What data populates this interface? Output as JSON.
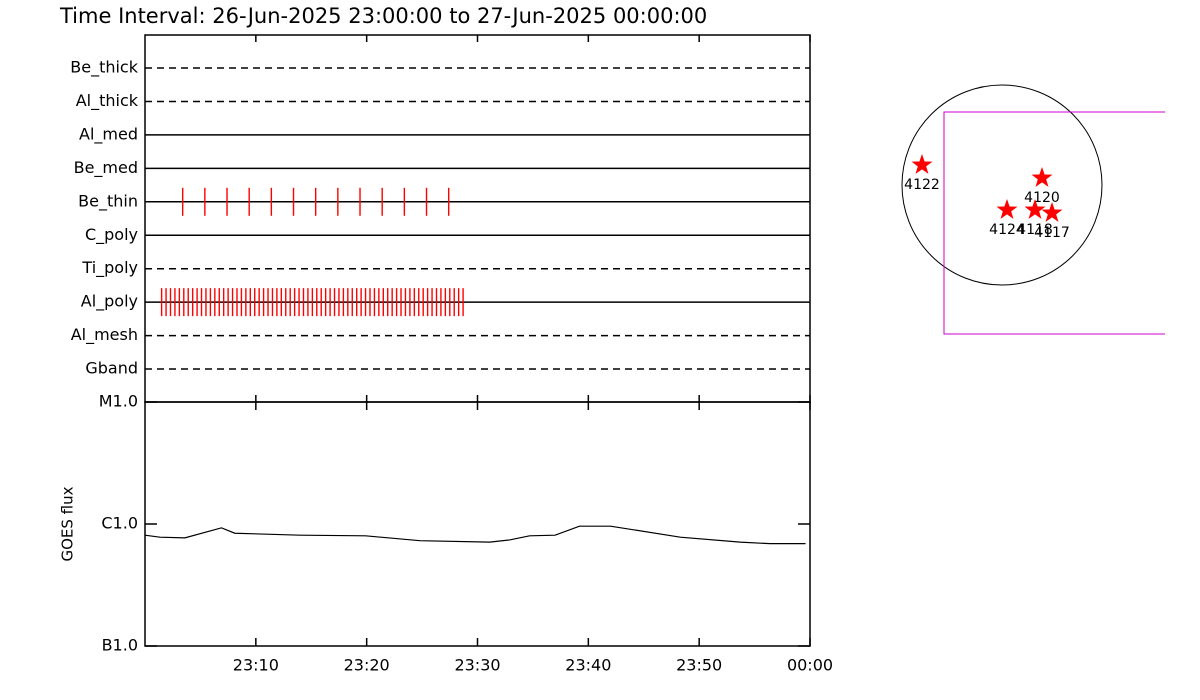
{
  "chart_data": [
    {
      "type": "event",
      "title": "Time Interval: 26-Jun-2025 23:00:00 to 27-Jun-2025 00:00:00",
      "color": "#ff0000",
      "rows": [
        {
          "name": "Be_thick",
          "style": "dashed",
          "times": []
        },
        {
          "name": "Al_thick",
          "style": "dashed",
          "times": []
        },
        {
          "name": "Al_med",
          "style": "solid",
          "times": []
        },
        {
          "name": "Be_med",
          "style": "solid",
          "times": []
        },
        {
          "name": "Be_thin",
          "style": "solid",
          "times": [
            3.4,
            5.4,
            7.4,
            9.4,
            11.4,
            13.4,
            15.4,
            17.4,
            19.4,
            21.4,
            23.4,
            25.4,
            27.4
          ]
        },
        {
          "name": "C_poly",
          "style": "solid",
          "times": []
        },
        {
          "name": "Ti_poly",
          "style": "dashed",
          "times": []
        },
        {
          "name": "Al_poly",
          "style": "solid",
          "times": [
            1.5,
            1.9,
            2.3,
            2.7,
            3.1,
            3.5,
            3.9,
            4.3,
            4.7,
            5.1,
            5.5,
            5.9,
            6.3,
            6.7,
            7.1,
            7.5,
            7.9,
            8.3,
            8.7,
            9.1,
            9.5,
            9.9,
            10.3,
            10.7,
            11.1,
            11.5,
            11.9,
            12.3,
            12.7,
            13.1,
            13.5,
            13.9,
            14.3,
            14.7,
            15.1,
            15.5,
            15.9,
            16.3,
            16.7,
            17.1,
            17.5,
            17.9,
            18.3,
            18.7,
            19.1,
            19.5,
            19.9,
            20.3,
            20.7,
            21.1,
            21.5,
            21.9,
            22.3,
            22.7,
            23.1,
            23.5,
            23.9,
            24.3,
            24.7,
            25.1,
            25.5,
            25.9,
            26.3,
            26.7,
            27.1,
            27.5,
            27.9,
            28.3,
            28.7
          ]
        },
        {
          "name": "Al_mesh",
          "style": "dashed",
          "times": []
        },
        {
          "name": "Gband",
          "style": "dashed",
          "times": []
        }
      ]
    },
    {
      "type": "line",
      "y_label": "GOES flux",
      "color": "#000000",
      "log_scale": true,
      "x": [
        0,
        1.35,
        3.6,
        6.9,
        8.1,
        14,
        19.9,
        24.8,
        31.1,
        32.9,
        34.7,
        37,
        39.2,
        42,
        48.3,
        53.7,
        56.4,
        59.6
      ],
      "values": [
        8.1e-07,
        7.8e-07,
        7.7e-07,
        9.3e-07,
        8.4e-07,
        8.1e-07,
        8e-07,
        7.3e-07,
        7.1e-07,
        7.4e-07,
        8e-07,
        8.1e-07,
        9.6e-07,
        9.6e-07,
        7.8e-07,
        7.1e-07,
        6.9e-07,
        6.9e-07
      ],
      "xlim": [
        0,
        60
      ],
      "xticks": [
        {
          "value": 10,
          "label": "23:10"
        },
        {
          "value": 20,
          "label": "23:20"
        },
        {
          "value": 30,
          "label": "23:30"
        },
        {
          "value": 40,
          "label": "23:40"
        },
        {
          "value": 50,
          "label": "23:50"
        },
        {
          "value": 60,
          "label": "00:00"
        }
      ],
      "ylim": [
        1e-07,
        1e-05
      ],
      "yticks": [
        {
          "value": 1e-07,
          "label": "B1.0"
        },
        {
          "value": 1e-06,
          "label": "C1.0"
        },
        {
          "value": 1e-05,
          "label": "M1.0"
        }
      ]
    },
    {
      "type": "scatter",
      "color": "#ff0000",
      "labels": [
        "4122",
        "4120",
        "4124",
        "4118",
        "4117"
      ],
      "x": [
        -0.8,
        0.4,
        0.05,
        0.33,
        0.5
      ],
      "y": [
        0.2,
        0.07,
        -0.25,
        -0.25,
        -0.28
      ]
    }
  ]
}
